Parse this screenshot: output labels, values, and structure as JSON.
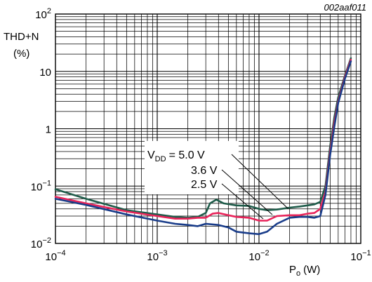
{
  "figure_id": "002aaf011",
  "chart_data": {
    "type": "line",
    "x_scale": "log",
    "y_scale": "log",
    "xlim": [
      0.0001,
      0.1
    ],
    "ylim": [
      0.01,
      100
    ],
    "grid": true,
    "xlabel": "P",
    "xlabel_sub": "o",
    "xlabel_unit": "(W)",
    "ylabel_line1": "THD+N",
    "ylabel_line2": "(%)",
    "x_ticks": [
      {
        "value": 0.0001,
        "base": "10",
        "exp": "−4"
      },
      {
        "value": 0.001,
        "base": "10",
        "exp": "−3"
      },
      {
        "value": 0.01,
        "base": "10",
        "exp": "−2"
      },
      {
        "value": 0.1,
        "base": "10",
        "exp": "−1"
      }
    ],
    "y_ticks": [
      {
        "value": 0.01,
        "base": "10",
        "exp": "−2"
      },
      {
        "value": 0.1,
        "base": "10",
        "exp": "−1"
      },
      {
        "value": 1,
        "base": "1",
        "exp": ""
      },
      {
        "value": 10,
        "base": "10",
        "exp": ""
      },
      {
        "value": 100,
        "base": "10",
        "exp": "2"
      }
    ],
    "annotation": {
      "prefix": "V",
      "sub": "DD",
      "labels": [
        "= 5.0 V",
        "3.6 V",
        "2.5 V"
      ]
    },
    "series": [
      {
        "label": "5.0 V",
        "color": "#1f5c4a",
        "points": [
          [
            0.0001,
            0.088
          ],
          [
            0.0002,
            0.06
          ],
          [
            0.0005,
            0.038
          ],
          [
            0.001,
            0.032
          ],
          [
            0.0015,
            0.029
          ],
          [
            0.002,
            0.028
          ],
          [
            0.0025,
            0.029
          ],
          [
            0.003,
            0.034
          ],
          [
            0.0033,
            0.05
          ],
          [
            0.0038,
            0.058
          ],
          [
            0.0045,
            0.05
          ],
          [
            0.006,
            0.046
          ],
          [
            0.008,
            0.045
          ],
          [
            0.01,
            0.04
          ],
          [
            0.012,
            0.038
          ],
          [
            0.015,
            0.039
          ],
          [
            0.02,
            0.042
          ],
          [
            0.025,
            0.044
          ],
          [
            0.03,
            0.046
          ],
          [
            0.035,
            0.048
          ],
          [
            0.04,
            0.053
          ],
          [
            0.045,
            0.1
          ],
          [
            0.05,
            0.5
          ],
          [
            0.055,
            1.6
          ],
          [
            0.06,
            3.5
          ],
          [
            0.07,
            8.5
          ],
          [
            0.08,
            17
          ]
        ]
      },
      {
        "label": "3.6 V",
        "color": "#e8245a",
        "points": [
          [
            0.0001,
            0.065
          ],
          [
            0.0002,
            0.05
          ],
          [
            0.0005,
            0.036
          ],
          [
            0.001,
            0.03
          ],
          [
            0.0015,
            0.027
          ],
          [
            0.002,
            0.027
          ],
          [
            0.0025,
            0.028
          ],
          [
            0.003,
            0.028
          ],
          [
            0.0035,
            0.033
          ],
          [
            0.004,
            0.034
          ],
          [
            0.005,
            0.031
          ],
          [
            0.006,
            0.029
          ],
          [
            0.008,
            0.028
          ],
          [
            0.01,
            0.025
          ],
          [
            0.012,
            0.025
          ],
          [
            0.015,
            0.03
          ],
          [
            0.02,
            0.031
          ],
          [
            0.025,
            0.031
          ],
          [
            0.03,
            0.033
          ],
          [
            0.035,
            0.034
          ],
          [
            0.04,
            0.04
          ],
          [
            0.045,
            0.08
          ],
          [
            0.05,
            0.4
          ],
          [
            0.055,
            1.3
          ],
          [
            0.06,
            3
          ],
          [
            0.07,
            8
          ],
          [
            0.08,
            16
          ]
        ]
      },
      {
        "label": "2.5 V",
        "color": "#1a3d8a",
        "points": [
          [
            0.0001,
            0.06
          ],
          [
            0.0002,
            0.047
          ],
          [
            0.0005,
            0.032
          ],
          [
            0.001,
            0.025
          ],
          [
            0.0015,
            0.022
          ],
          [
            0.002,
            0.021
          ],
          [
            0.0025,
            0.02
          ],
          [
            0.003,
            0.022
          ],
          [
            0.004,
            0.021
          ],
          [
            0.005,
            0.019
          ],
          [
            0.006,
            0.016
          ],
          [
            0.008,
            0.015
          ],
          [
            0.01,
            0.0145
          ],
          [
            0.012,
            0.016
          ],
          [
            0.015,
            0.022
          ],
          [
            0.02,
            0.028
          ],
          [
            0.025,
            0.029
          ],
          [
            0.03,
            0.029
          ],
          [
            0.035,
            0.028
          ],
          [
            0.04,
            0.03
          ],
          [
            0.045,
            0.07
          ],
          [
            0.05,
            0.35
          ],
          [
            0.055,
            1.1
          ],
          [
            0.06,
            2.8
          ],
          [
            0.07,
            7.5
          ],
          [
            0.08,
            15
          ]
        ]
      }
    ]
  }
}
